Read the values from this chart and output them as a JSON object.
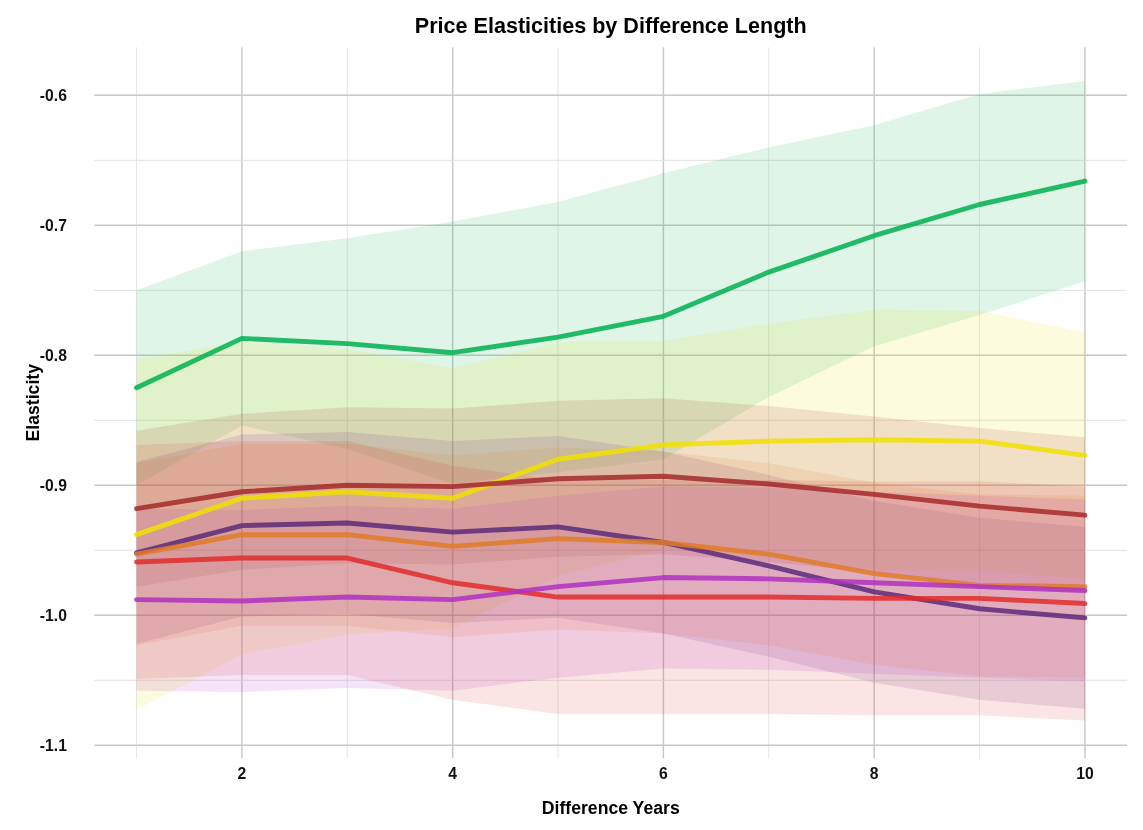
{
  "chart_data": {
    "type": "line",
    "title": "Price Elasticities by Difference Length",
    "xlabel": "Difference Years",
    "ylabel": "Elasticity",
    "x": [
      1,
      2,
      3,
      4,
      5,
      6,
      7,
      8,
      9,
      10
    ],
    "xlim": [
      0.6,
      10.4
    ],
    "xticks": [
      {
        "value": 1,
        "label": null
      },
      2,
      {
        "value": 3,
        "label": null
      },
      4,
      {
        "value": 5,
        "label": null
      },
      6,
      {
        "value": 7,
        "label": null
      },
      8,
      {
        "value": 9,
        "label": null
      },
      10
    ],
    "ylim": [
      -1.11,
      -0.563
    ],
    "yticks": [
      -1.1,
      {
        "value": -1.05,
        "label": null
      },
      {
        "value": -1.0,
        "label": "-1.0"
      },
      {
        "value": -0.95,
        "label": null
      },
      -0.9,
      {
        "value": -0.85,
        "label": null
      },
      -0.8,
      {
        "value": -0.75,
        "label": null
      },
      -0.7,
      {
        "value": -0.65,
        "label": null
      },
      -0.6
    ],
    "grid": true,
    "series": [
      {
        "color": "#00b050",
        "values": [
          -0.825,
          -0.787,
          -0.791,
          -0.798,
          -0.786,
          -0.77,
          -0.736,
          -0.708,
          -0.684,
          -0.666
        ],
        "upper": [
          -0.75,
          -0.72,
          -0.71,
          -0.697,
          -0.682,
          -0.66,
          -0.64,
          -0.623,
          -0.599,
          -0.589
        ],
        "lower": [
          -0.9,
          -0.854,
          -0.872,
          -0.899,
          -0.89,
          -0.88,
          -0.832,
          -0.793,
          -0.769,
          -0.743
        ]
      },
      {
        "color": "#f0e000",
        "values": [
          -0.938,
          -0.91,
          -0.905,
          -0.91,
          -0.88,
          -0.869,
          -0.866,
          -0.865,
          -0.866,
          -0.877
        ],
        "upper": [
          -0.803,
          -0.79,
          -0.795,
          -0.81,
          -0.79,
          -0.789,
          -0.776,
          -0.765,
          -0.766,
          -0.782
        ],
        "lower": [
          -1.073,
          -1.03,
          -1.015,
          -1.01,
          -0.97,
          -0.949,
          -0.956,
          -0.965,
          -0.966,
          -0.972
        ]
      },
      {
        "color": "#a52a2a",
        "values": [
          -0.918,
          -0.905,
          -0.9,
          -0.901,
          -0.895,
          -0.893,
          -0.899,
          -0.907,
          -0.916,
          -0.923
        ],
        "upper": [
          -0.858,
          -0.845,
          -0.84,
          -0.841,
          -0.835,
          -0.833,
          -0.839,
          -0.847,
          -0.856,
          -0.863
        ],
        "lower": [
          -0.978,
          -0.965,
          -0.96,
          -0.961,
          -0.955,
          -0.953,
          -0.959,
          -0.967,
          -0.976,
          -0.983
        ]
      },
      {
        "color": "#5c2a7a",
        "values": [
          -0.952,
          -0.931,
          -0.929,
          -0.936,
          -0.932,
          -0.944,
          -0.962,
          -0.982,
          -0.995,
          -1.002
        ],
        "upper": [
          -0.882,
          -0.861,
          -0.859,
          -0.866,
          -0.862,
          -0.874,
          -0.892,
          -0.912,
          -0.925,
          -0.932
        ],
        "lower": [
          -1.022,
          -1.001,
          -0.999,
          -1.006,
          -1.002,
          -1.014,
          -1.032,
          -1.052,
          -1.065,
          -1.072
        ]
      },
      {
        "color": "#e07b28",
        "values": [
          -0.953,
          -0.938,
          -0.938,
          -0.947,
          -0.941,
          -0.944,
          -0.953,
          -0.968,
          -0.977,
          -0.978
        ],
        "upper": [
          -0.883,
          -0.868,
          -0.868,
          -0.877,
          -0.871,
          -0.874,
          -0.883,
          -0.898,
          -0.907,
          -0.908
        ],
        "lower": [
          -1.023,
          -1.008,
          -1.008,
          -1.017,
          -1.011,
          -1.014,
          -1.023,
          -1.038,
          -1.047,
          -1.048
        ]
      },
      {
        "color": "#e32c2c",
        "values": [
          -0.959,
          -0.956,
          -0.956,
          -0.975,
          -0.986,
          -0.986,
          -0.986,
          -0.987,
          -0.987,
          -0.991
        ],
        "upper": [
          -0.869,
          -0.866,
          -0.866,
          -0.885,
          -0.896,
          -0.896,
          -0.896,
          -0.897,
          -0.897,
          -0.901
        ],
        "lower": [
          -1.049,
          -1.046,
          -1.046,
          -1.065,
          -1.076,
          -1.076,
          -1.076,
          -1.077,
          -1.077,
          -1.081
        ]
      },
      {
        "color": "#b030c0",
        "values": [
          -0.988,
          -0.989,
          -0.986,
          -0.988,
          -0.978,
          -0.971,
          -0.972,
          -0.975,
          -0.978,
          -0.981
        ],
        "upper": [
          -0.918,
          -0.919,
          -0.916,
          -0.918,
          -0.908,
          -0.901,
          -0.902,
          -0.905,
          -0.908,
          -0.911
        ],
        "lower": [
          -1.058,
          -1.059,
          -1.056,
          -1.058,
          -1.048,
          -1.041,
          -1.042,
          -1.045,
          -1.048,
          -1.051
        ]
      }
    ]
  }
}
